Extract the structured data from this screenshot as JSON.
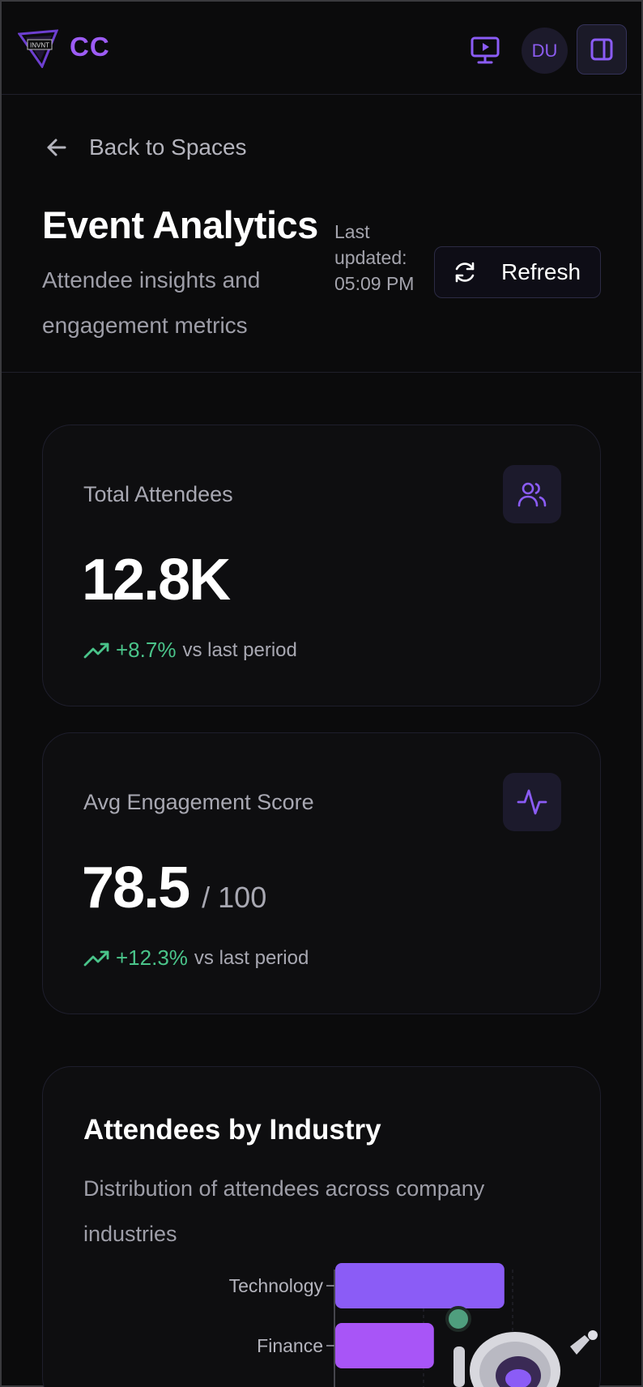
{
  "header": {
    "logo_text": "CC",
    "logo_mark_text": "INVNT",
    "avatar_initials": "DU"
  },
  "nav": {
    "back_label": "Back to Spaces"
  },
  "page": {
    "title": "Event Analytics",
    "subtitle": "Attendee insights and engagement metrics",
    "last_updated_label": "Last updated:",
    "last_updated_time": "05:09 PM",
    "refresh_label": "Refresh"
  },
  "metrics": [
    {
      "label": "Total Attendees",
      "value": "12.8K",
      "suffix": "",
      "change": "+8.7%",
      "period": "vs last period",
      "icon": "users-icon"
    },
    {
      "label": "Avg Engagement Score",
      "value": "78.5",
      "suffix": "/ 100",
      "change": "+12.3%",
      "period": "vs last period",
      "icon": "activity-icon"
    }
  ],
  "industry_chart": {
    "title": "Attendees by Industry",
    "description": "Distribution of attendees across company industries"
  },
  "chart_data": {
    "type": "bar",
    "orientation": "horizontal",
    "categories": [
      "Technology",
      "Finance"
    ],
    "series": [
      {
        "values": [
          3.6,
          2.1
        ]
      }
    ],
    "colors": [
      "#8b5cf6",
      "#a855f7"
    ],
    "grid": true
  },
  "colors": {
    "accent": "#8b5cf6",
    "positive": "#4ac48a",
    "background": "#0b0b0c"
  }
}
